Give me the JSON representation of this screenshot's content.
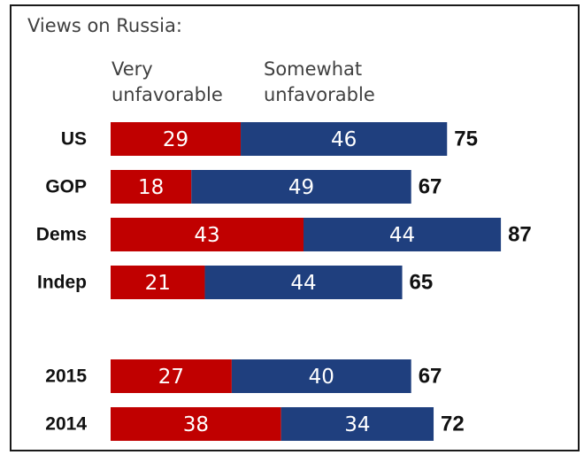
{
  "chart_data": {
    "type": "bar",
    "orientation": "horizontal",
    "stacked": true,
    "title": "Views on Russia:",
    "legend": [
      "Very\nunfavorable",
      "Somewhat\nunfavorable"
    ],
    "legend_placement": "top",
    "categories": [
      "US",
      "GOP",
      "Dems",
      "Indep",
      "2015",
      "2014"
    ],
    "group_gap_after": 3,
    "series": [
      {
        "name": "Very unfavorable",
        "color": "#c00000",
        "values": [
          29,
          18,
          43,
          21,
          27,
          38
        ]
      },
      {
        "name": "Somewhat unfavorable",
        "color": "#1f3f7e",
        "values": [
          46,
          49,
          44,
          44,
          40,
          34
        ]
      }
    ],
    "totals": [
      75,
      67,
      87,
      65,
      67,
      72
    ],
    "grid": false
  }
}
